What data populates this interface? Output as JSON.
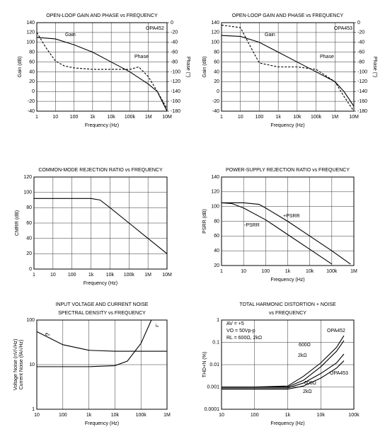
{
  "chart_data": [
    {
      "type": "line",
      "title": [
        "OPEN-LOOP GAIN AND PHASE vs FREQUENCY"
      ],
      "x_label": "Frequency (Hz)",
      "y_label": "Gain (dB)",
      "y2_label": "Phase (°)",
      "xscale": "log",
      "yscale": "linear",
      "grid": true,
      "xlim": [
        1,
        10000000
      ],
      "xticks": [
        1,
        10,
        100,
        {
          "value": 1000,
          "label": "1k"
        },
        {
          "value": 10000,
          "label": "10k"
        },
        {
          "value": 100000,
          "label": "100k"
        },
        {
          "value": 1000000,
          "label": "1M"
        },
        {
          "value": 10000000,
          "label": "10M"
        }
      ],
      "ylim": [
        -40,
        140
      ],
      "yticks": [
        -40,
        -20,
        0,
        20,
        40,
        60,
        80,
        100,
        120,
        140
      ],
      "y2lim": [
        -180,
        0
      ],
      "y2ticks": [
        -180,
        -160,
        -140,
        -120,
        -100,
        -80,
        -60,
        -40,
        -20,
        0
      ],
      "annotations": [
        "Gain",
        "Phase",
        "OPA452"
      ],
      "series": [
        {
          "color": "#000000",
          "linestyle": "solid",
          "x": [
            1,
            10,
            100,
            1000,
            10000,
            100000,
            1000000,
            3000000,
            10000000
          ],
          "values": [
            110,
            107,
            95,
            80,
            60,
            40,
            15,
            0,
            -40
          ]
        },
        {
          "color": "#000000",
          "linestyle": "dashed",
          "axis": "y2",
          "x": [
            1,
            3,
            10,
            30,
            100,
            1000,
            10000,
            100000,
            300000,
            1000000,
            3000000,
            10000000
          ],
          "values": [
            -20,
            -50,
            -78,
            -88,
            -92,
            -95,
            -95,
            -95,
            -90,
            -110,
            -140,
            -175
          ]
        }
      ]
    },
    {
      "type": "line",
      "title": [
        "OPEN-LOOP GAIN AND PHASE vs FREQUENCY"
      ],
      "x_label": "Frequency (Hz)",
      "y_label": "Gain (dB)",
      "y2_label": "Phase (°)",
      "xscale": "log",
      "yscale": "linear",
      "grid": true,
      "xlim": [
        1,
        10000000
      ],
      "xticks": [
        1,
        10,
        100,
        {
          "value": 1000,
          "label": "1k"
        },
        {
          "value": 10000,
          "label": "10k"
        },
        {
          "value": 100000,
          "label": "100k"
        },
        {
          "value": 1000000,
          "label": "1M"
        },
        {
          "value": 10000000,
          "label": "10M"
        }
      ],
      "ylim": [
        -40,
        140
      ],
      "yticks": [
        -40,
        -20,
        0,
        20,
        40,
        60,
        80,
        100,
        120,
        140
      ],
      "y2lim": [
        -180,
        0
      ],
      "y2ticks": [
        -180,
        -160,
        -140,
        -120,
        -100,
        -80,
        -60,
        -40,
        -20,
        0
      ],
      "annotations": [
        "Gain",
        "Phase",
        "OPA453"
      ],
      "series": [
        {
          "color": "#000000",
          "linestyle": "solid",
          "x": [
            1,
            10,
            100,
            1000,
            10000,
            100000,
            1000000,
            3000000,
            10000000
          ],
          "values": [
            114,
            112,
            100,
            80,
            60,
            40,
            20,
            0,
            -30
          ]
        },
        {
          "color": "#000000",
          "linestyle": "dashed",
          "axis": "y2",
          "x": [
            1,
            10,
            30,
            100,
            1000,
            10000,
            100000,
            1000000,
            3000000,
            10000000
          ],
          "values": [
            -5,
            -10,
            -45,
            -82,
            -90,
            -90,
            -95,
            -120,
            -150,
            -180
          ]
        }
      ]
    },
    {
      "type": "line",
      "title": [
        "COMMON-MODE REJECTION RATIO vs FREQUENCY"
      ],
      "x_label": "Frequency (Hz)",
      "y_label": "CMRR (dB)",
      "xscale": "log",
      "yscale": "linear",
      "grid": true,
      "xlim": [
        1,
        10000000
      ],
      "xticks": [
        1,
        10,
        100,
        {
          "value": 1000,
          "label": "1k"
        },
        {
          "value": 10000,
          "label": "10k"
        },
        {
          "value": 100000,
          "label": "100k"
        },
        {
          "value": 1000000,
          "label": "1M"
        },
        {
          "value": 10000000,
          "label": "10M"
        }
      ],
      "ylim": [
        0,
        120
      ],
      "yticks": [
        0,
        20,
        40,
        60,
        80,
        100,
        120
      ],
      "annotations": [],
      "series": [
        {
          "color": "#000000",
          "linestyle": "solid",
          "x": [
            1,
            10,
            100,
            1000,
            3000,
            10000,
            100000,
            1000000,
            10000000
          ],
          "values": [
            92,
            92,
            92,
            92,
            90,
            80,
            60,
            40,
            20
          ]
        }
      ]
    },
    {
      "type": "line",
      "title": [
        "POWER-SUPPLY REJECTION RATIO vs FREQUENCY"
      ],
      "x_label": "Frequency (Hz)",
      "y_label": "PSRR (dB)",
      "xscale": "log",
      "yscale": "linear",
      "grid": true,
      "xlim": [
        1,
        1000000
      ],
      "xticks": [
        1,
        10,
        100,
        {
          "value": 1000,
          "label": "1k"
        },
        {
          "value": 10000,
          "label": "10k"
        },
        {
          "value": 100000,
          "label": "100k"
        },
        {
          "value": 1000000,
          "label": "1M"
        }
      ],
      "ylim": [
        20,
        140
      ],
      "yticks": [
        20,
        40,
        60,
        80,
        100,
        120,
        140
      ],
      "annotations": [
        "+PSRR",
        "-PSRR"
      ],
      "series": [
        {
          "color": "#000000",
          "linestyle": "solid",
          "x": [
            1,
            10,
            50,
            100,
            1000,
            10000,
            100000,
            700000
          ],
          "values": [
            105,
            105,
            103,
            98,
            80,
            60,
            40,
            22
          ]
        },
        {
          "color": "#000000",
          "linestyle": "solid",
          "x": [
            1,
            3,
            10,
            100,
            1000,
            10000,
            100000
          ],
          "values": [
            105,
            104,
            98,
            82,
            62,
            42,
            22
          ]
        }
      ]
    },
    {
      "type": "line",
      "title": [
        "INPUT VOLTAGE AND CURRENT NOISE",
        "SPECTRAL DENSITY vs FREQUENCY"
      ],
      "x_label": "Frequency (Hz)",
      "y_label": "Voltage Noise (nV/√Hz)",
      "y_label2": "Current Noise (fA/√Hz)",
      "xscale": "log",
      "yscale": "log",
      "grid": true,
      "xlim": [
        10,
        1000000
      ],
      "xticks": [
        10,
        100,
        {
          "value": 1000,
          "label": "1k"
        },
        {
          "value": 10000,
          "label": "10k"
        },
        {
          "value": 100000,
          "label": "100k"
        },
        {
          "value": 1000000,
          "label": "1M"
        }
      ],
      "ylim": [
        1,
        100
      ],
      "yticks": [
        1,
        10,
        100
      ],
      "annotations": [
        "eₙ",
        "iₙ"
      ],
      "series": [
        {
          "color": "#000000",
          "linestyle": "solid",
          "x": [
            10,
            30,
            100,
            1000,
            10000,
            30000,
            100000,
            1000000
          ],
          "values": [
            55,
            40,
            28,
            21,
            20,
            20,
            20,
            20
          ]
        },
        {
          "color": "#000000",
          "linestyle": "solid",
          "x": [
            10,
            100,
            1000,
            10000,
            30000,
            100000,
            250000
          ],
          "values": [
            9,
            9,
            9,
            9.5,
            12,
            30,
            100
          ]
        }
      ]
    },
    {
      "type": "line",
      "title": [
        "TOTAL HARMONIC DISTORTION + NOISE",
        "vs FREQUENCY"
      ],
      "x_label": "Frequency (Hz)",
      "y_label": "THD+N (%)",
      "xscale": "log",
      "yscale": "log",
      "grid": true,
      "xlim": [
        10,
        100000
      ],
      "xticks": [
        10,
        100,
        {
          "value": 1000,
          "label": "1k"
        },
        {
          "value": 10000,
          "label": "10k"
        },
        {
          "value": 100000,
          "label": "100k"
        }
      ],
      "ylim": [
        0.0001,
        1
      ],
      "yticks": [
        0.0001,
        0.001,
        0.01,
        0.1,
        1
      ],
      "annotations": [
        "AV = +5",
        "VO = 50Vp-p",
        "RL = 600Ω, 2kΩ",
        "OPA452",
        "600Ω",
        "2kΩ",
        "OPA453",
        "600Ω",
        "2kΩ"
      ],
      "series": [
        {
          "color": "#000000",
          "linestyle": "solid",
          "x": [
            10,
            100,
            1000,
            3000,
            10000,
            30000,
            50000
          ],
          "values": [
            0.001,
            0.001,
            0.0011,
            0.003,
            0.012,
            0.06,
            0.2
          ]
        },
        {
          "color": "#000000",
          "linestyle": "solid",
          "x": [
            10,
            100,
            1000,
            3000,
            10000,
            30000,
            50000
          ],
          "values": [
            0.001,
            0.001,
            0.001,
            0.002,
            0.008,
            0.04,
            0.12
          ]
        },
        {
          "color": "#000000",
          "linestyle": "solid",
          "x": [
            10,
            100,
            1000,
            3000,
            10000,
            30000,
            50000
          ],
          "values": [
            0.0009,
            0.0009,
            0.0009,
            0.0015,
            0.004,
            0.012,
            0.03
          ]
        },
        {
          "color": "#000000",
          "linestyle": "solid",
          "x": [
            10,
            100,
            1000,
            3000,
            10000,
            30000,
            50000
          ],
          "values": [
            0.0008,
            0.0008,
            0.0008,
            0.0011,
            0.0025,
            0.007,
            0.015
          ]
        }
      ]
    }
  ]
}
